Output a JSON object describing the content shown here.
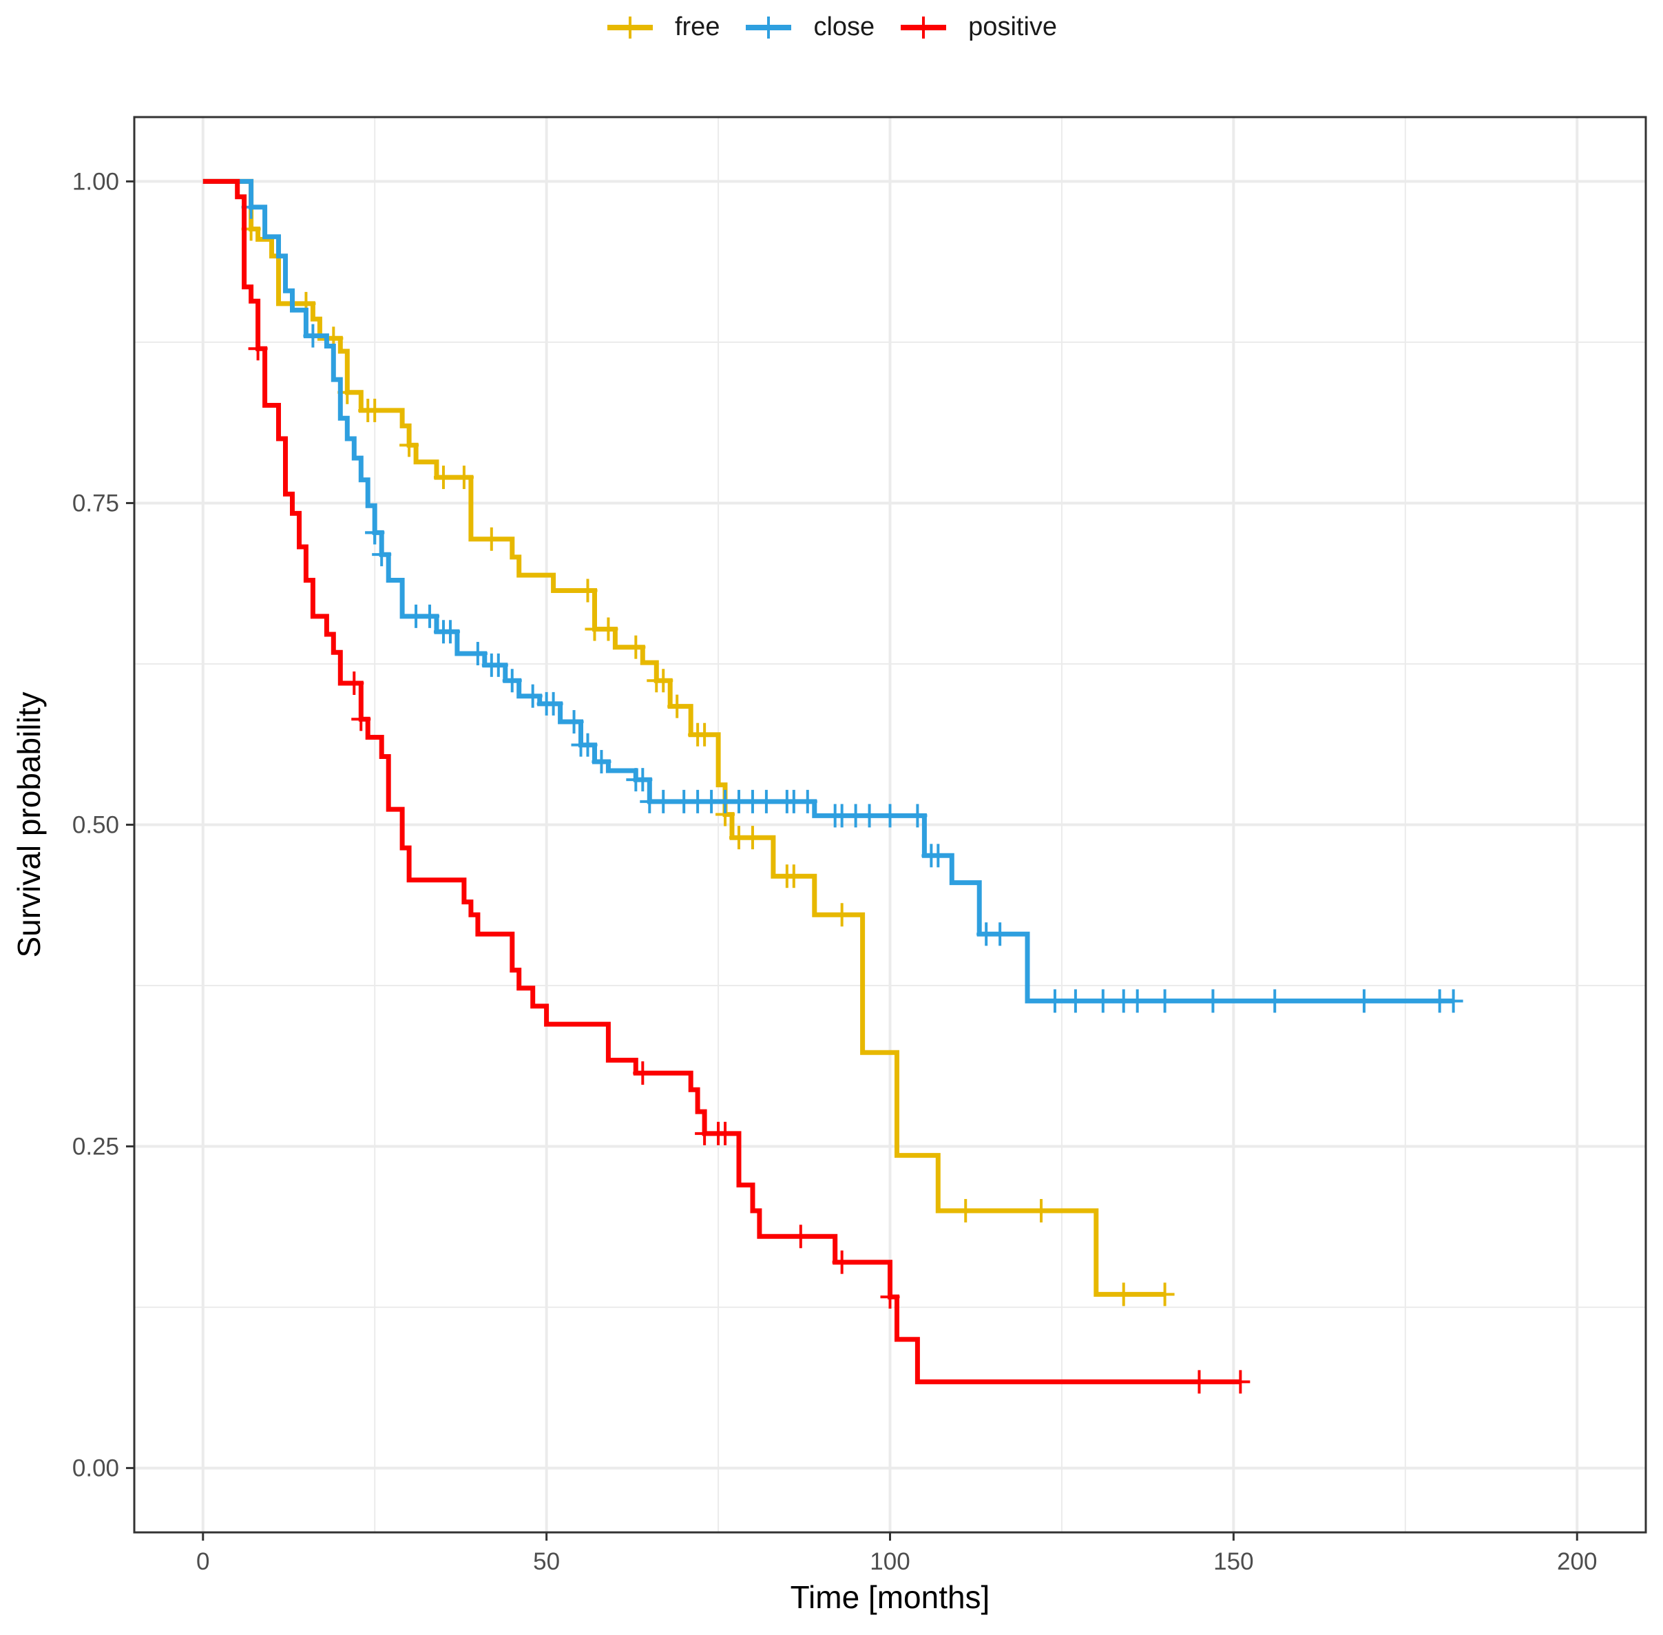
{
  "chart_data": {
    "type": "line",
    "subtype": "kaplan-meier step",
    "title": "",
    "xlabel": "Time [months]",
    "ylabel": "Survival probability",
    "xlim": [
      -10,
      210
    ],
    "ylim": [
      -0.05,
      1.05
    ],
    "xticks": [
      0,
      50,
      100,
      150,
      200
    ],
    "xtick_labels": [
      "0",
      "50",
      "100",
      "150",
      "200"
    ],
    "yticks": [
      0,
      0.25,
      0.5,
      0.75,
      1.0
    ],
    "ytick_labels": [
      "0.00",
      "0.25",
      "0.50",
      "0.75",
      "1.00"
    ],
    "grid": true,
    "legend_position": "top",
    "series": [
      {
        "name": "free",
        "color": "#E7B800",
        "steps": [
          [
            0,
            1.0
          ],
          [
            7,
            0.963
          ],
          [
            8,
            0.955
          ],
          [
            10,
            0.942
          ],
          [
            11,
            0.905
          ],
          [
            16,
            0.893
          ],
          [
            17,
            0.878
          ],
          [
            20,
            0.868
          ],
          [
            21,
            0.836
          ],
          [
            23,
            0.822
          ],
          [
            29,
            0.81
          ],
          [
            30,
            0.795
          ],
          [
            31,
            0.782
          ],
          [
            34,
            0.77
          ],
          [
            39,
            0.722
          ],
          [
            45,
            0.708
          ],
          [
            46,
            0.694
          ],
          [
            51,
            0.682
          ],
          [
            57,
            0.652
          ],
          [
            60,
            0.638
          ],
          [
            64,
            0.626
          ],
          [
            66,
            0.612
          ],
          [
            68,
            0.592
          ],
          [
            71,
            0.57
          ],
          [
            75,
            0.531
          ],
          [
            76,
            0.508
          ],
          [
            77,
            0.49
          ],
          [
            83,
            0.46
          ],
          [
            89,
            0.43
          ],
          [
            96,
            0.323
          ],
          [
            101,
            0.243
          ],
          [
            107,
            0.2
          ],
          [
            130,
            0.135
          ],
          [
            140,
            0.135
          ]
        ],
        "censor_times": [
          7,
          15,
          19,
          21,
          24,
          25,
          30,
          35,
          38,
          42,
          56,
          57,
          59,
          63,
          66,
          67,
          69,
          72,
          73,
          76,
          78,
          80,
          85,
          86,
          93,
          111,
          122,
          134,
          140
        ]
      },
      {
        "name": "close",
        "color": "#2E9FDF",
        "steps": [
          [
            0,
            1.0
          ],
          [
            7,
            0.98
          ],
          [
            9,
            0.957
          ],
          [
            11,
            0.942
          ],
          [
            12,
            0.915
          ],
          [
            13,
            0.9
          ],
          [
            15,
            0.88
          ],
          [
            18,
            0.872
          ],
          [
            19,
            0.846
          ],
          [
            20,
            0.816
          ],
          [
            21,
            0.8
          ],
          [
            22,
            0.785
          ],
          [
            23,
            0.768
          ],
          [
            24,
            0.748
          ],
          [
            25,
            0.727
          ],
          [
            26,
            0.71
          ],
          [
            27,
            0.69
          ],
          [
            29,
            0.662
          ],
          [
            34,
            0.65
          ],
          [
            37,
            0.633
          ],
          [
            41,
            0.624
          ],
          [
            44,
            0.612
          ],
          [
            46,
            0.6
          ],
          [
            49,
            0.594
          ],
          [
            52,
            0.58
          ],
          [
            55,
            0.562
          ],
          [
            57,
            0.549
          ],
          [
            59,
            0.542
          ],
          [
            63,
            0.535
          ],
          [
            65,
            0.518
          ],
          [
            89,
            0.507
          ],
          [
            105,
            0.476
          ],
          [
            109,
            0.455
          ],
          [
            113,
            0.415
          ],
          [
            120,
            0.363
          ],
          [
            182,
            0.363
          ]
        ],
        "censor_times": [
          7,
          16,
          25,
          25,
          26,
          31,
          33,
          35,
          36,
          40,
          42,
          43,
          45,
          48,
          50,
          51,
          54,
          55,
          56,
          58,
          63,
          64,
          65,
          67,
          70,
          72,
          74,
          76,
          78,
          80,
          82,
          85,
          86,
          88,
          92,
          93,
          95,
          97,
          100,
          104,
          106,
          107,
          114,
          116,
          124,
          127,
          131,
          134,
          136,
          140,
          147,
          156,
          169,
          180,
          182
        ]
      },
      {
        "name": "positive",
        "color": "#FC0000",
        "steps": [
          [
            0,
            1.0
          ],
          [
            5,
            0.988
          ],
          [
            6,
            0.918
          ],
          [
            7,
            0.907
          ],
          [
            8,
            0.87
          ],
          [
            9,
            0.826
          ],
          [
            11,
            0.8
          ],
          [
            12,
            0.757
          ],
          [
            13,
            0.742
          ],
          [
            14,
            0.716
          ],
          [
            15,
            0.69
          ],
          [
            16,
            0.662
          ],
          [
            18,
            0.648
          ],
          [
            19,
            0.634
          ],
          [
            20,
            0.61
          ],
          [
            23,
            0.582
          ],
          [
            24,
            0.568
          ],
          [
            26,
            0.553
          ],
          [
            27,
            0.512
          ],
          [
            29,
            0.482
          ],
          [
            30,
            0.457
          ],
          [
            38,
            0.44
          ],
          [
            39,
            0.43
          ],
          [
            40,
            0.415
          ],
          [
            45,
            0.387
          ],
          [
            46,
            0.373
          ],
          [
            48,
            0.359
          ],
          [
            50,
            0.345
          ],
          [
            59,
            0.317
          ],
          [
            63,
            0.307
          ],
          [
            71,
            0.294
          ],
          [
            72,
            0.277
          ],
          [
            73,
            0.26
          ],
          [
            78,
            0.22
          ],
          [
            80,
            0.2
          ],
          [
            81,
            0.18
          ],
          [
            92,
            0.16
          ],
          [
            100,
            0.133
          ],
          [
            101,
            0.1
          ],
          [
            104,
            0.067
          ],
          [
            151,
            0.067
          ]
        ],
        "censor_times": [
          8,
          22,
          23,
          64,
          73,
          75,
          76,
          87,
          93,
          100,
          145,
          151
        ]
      }
    ]
  }
}
